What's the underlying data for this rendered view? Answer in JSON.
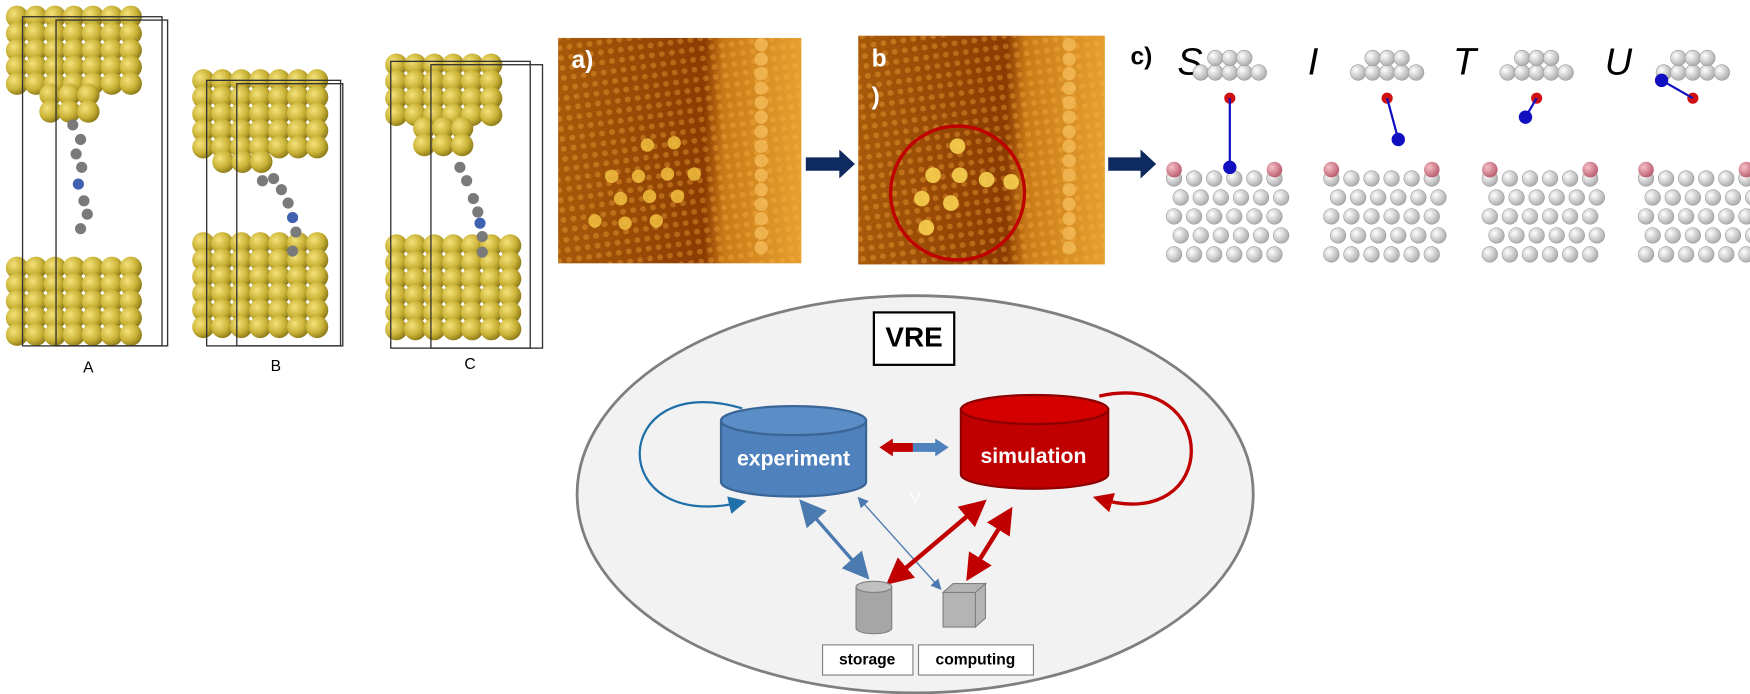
{
  "junction_labels": [
    "A",
    "B",
    "C"
  ],
  "panel_labels": {
    "a": "a)",
    "b": [
      "b",
      ")"
    ],
    "c": "c)"
  },
  "configurations": [
    "S",
    "I",
    "T",
    "U"
  ],
  "vre": {
    "title": "VRE",
    "experiment": "experiment",
    "simulation": "simulation",
    "faint_mark": "V",
    "storage": "storage",
    "computing": "computing"
  }
}
